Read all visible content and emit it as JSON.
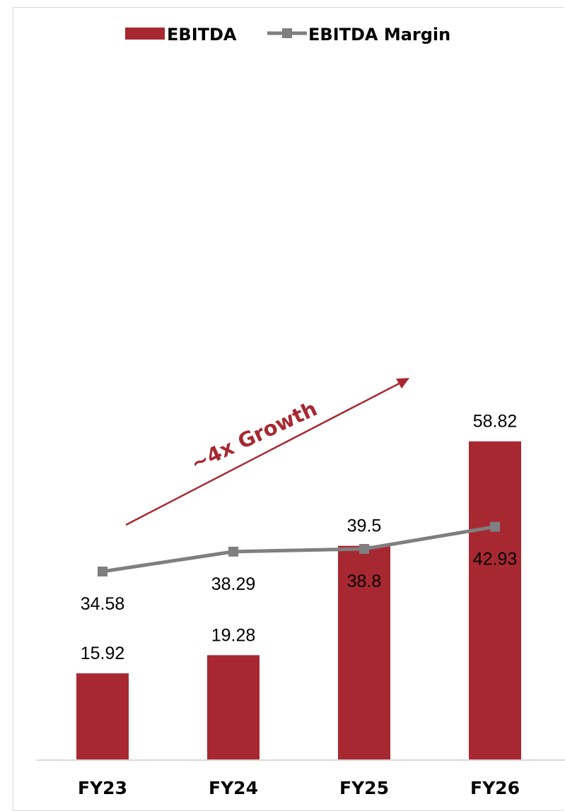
{
  "chart_data": {
    "type": "bar",
    "categories": [
      "FY23",
      "FY24",
      "FY25",
      "FY26"
    ],
    "series": [
      {
        "name": "EBITDA",
        "type": "bar",
        "values": [
          15.92,
          19.28,
          39.5,
          58.82
        ],
        "color": "#a82832"
      },
      {
        "name": "EBITDA Margin",
        "type": "line",
        "values": [
          34.58,
          38.29,
          38.8,
          42.93
        ],
        "color": "#7f7f7f"
      }
    ],
    "value_labels": {
      "EBITDA": [
        "15.92",
        "19.28",
        "39.5",
        "58.82"
      ],
      "EBITDA Margin": [
        "34.58",
        "38.29",
        "38.8",
        "42.93"
      ]
    },
    "annotation": "~4x Growth",
    "annotation_color": "#a82832",
    "legend_position": "top",
    "grid": false,
    "title": "",
    "xlabel": "",
    "ylabel": ""
  }
}
